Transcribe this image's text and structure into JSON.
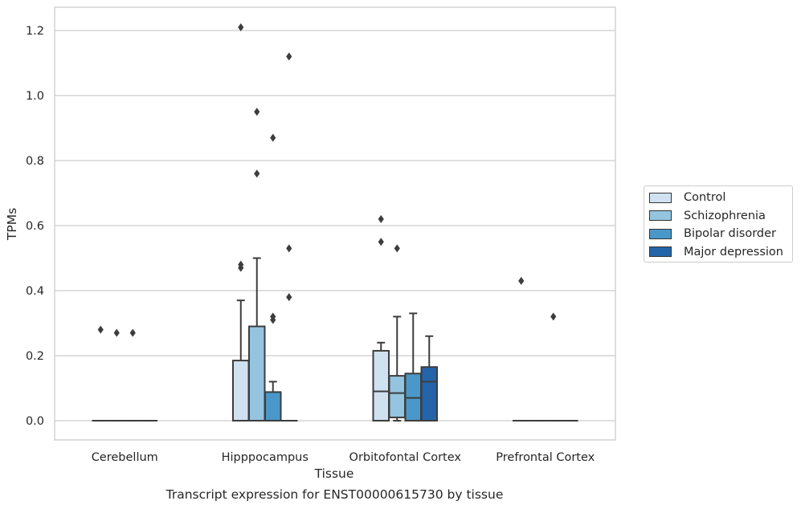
{
  "chart_data": {
    "type": "box",
    "xlabel": "Tissue",
    "ylabel": "TPMs",
    "ylim": [
      -0.06,
      1.27
    ],
    "yticks": [
      0.0,
      0.2,
      0.4,
      0.6,
      0.8,
      1.0,
      1.2
    ],
    "ytick_labels": [
      "0.0",
      "0.2",
      "0.4",
      "0.6",
      "0.8",
      "1.0",
      "1.2"
    ],
    "grid": true,
    "legend_position": "right",
    "categories": [
      "Cerebellum",
      "Hipppocampus",
      "Orbitofontal Cortex",
      "Prefrontal Cortex"
    ],
    "series": [
      {
        "name": "Control",
        "color": "#d0e1f2",
        "boxes": [
          {
            "q1": 0,
            "median": 0,
            "q3": 0,
            "whisker_low": 0,
            "whisker_high": 0,
            "outliers": [
              0.28
            ]
          },
          {
            "q1": 0,
            "median": 0,
            "q3": 0.185,
            "whisker_low": 0,
            "whisker_high": 0.37,
            "outliers": [
              0.48,
              0.47,
              1.21
            ]
          },
          {
            "q1": 0,
            "median": 0.09,
            "q3": 0.215,
            "whisker_low": 0,
            "whisker_high": 0.24,
            "outliers": [
              0.62,
              0.55
            ]
          },
          {
            "q1": 0,
            "median": 0,
            "q3": 0,
            "whisker_low": 0,
            "whisker_high": 0,
            "outliers": [
              0.43
            ]
          }
        ]
      },
      {
        "name": "Schizophrenia",
        "color": "#94c4df",
        "boxes": [
          {
            "q1": 0,
            "median": 0,
            "q3": 0,
            "whisker_low": 0,
            "whisker_high": 0,
            "outliers": [
              0.27
            ]
          },
          {
            "q1": 0,
            "median": 0,
            "q3": 0.29,
            "whisker_low": 0,
            "whisker_high": 0.5,
            "outliers": [
              0.95,
              0.76
            ]
          },
          {
            "q1": 0.01,
            "median": 0.085,
            "q3": 0.138,
            "whisker_low": 0,
            "whisker_high": 0.32,
            "outliers": [
              0.53
            ]
          },
          {
            "q1": 0,
            "median": 0,
            "q3": 0,
            "whisker_low": 0,
            "whisker_high": 0,
            "outliers": []
          }
        ]
      },
      {
        "name": "Bipolar disorder",
        "color": "#4a98c9",
        "boxes": [
          {
            "q1": 0,
            "median": 0,
            "q3": 0,
            "whisker_low": 0,
            "whisker_high": 0,
            "outliers": [
              0.27
            ]
          },
          {
            "q1": 0,
            "median": 0,
            "q3": 0.088,
            "whisker_low": 0,
            "whisker_high": 0.12,
            "outliers": [
              0.87,
              0.32,
              0.31
            ]
          },
          {
            "q1": 0,
            "median": 0.07,
            "q3": 0.145,
            "whisker_low": 0,
            "whisker_high": 0.33,
            "outliers": []
          },
          {
            "q1": 0,
            "median": 0,
            "q3": 0,
            "whisker_low": 0,
            "whisker_high": 0,
            "outliers": [
              0.32
            ]
          }
        ]
      },
      {
        "name": "Major depression",
        "color": "#2464a9",
        "boxes": [
          {
            "q1": 0,
            "median": 0,
            "q3": 0,
            "whisker_low": 0,
            "whisker_high": 0,
            "outliers": []
          },
          {
            "q1": 0,
            "median": 0,
            "q3": 0,
            "whisker_low": 0,
            "whisker_high": 0,
            "outliers": [
              1.12,
              0.53,
              0.38
            ]
          },
          {
            "q1": 0,
            "median": 0.12,
            "q3": 0.165,
            "whisker_low": 0,
            "whisker_high": 0.26,
            "outliers": []
          },
          {
            "q1": 0,
            "median": 0,
            "q3": 0,
            "whisker_low": 0,
            "whisker_high": 0,
            "outliers": []
          }
        ]
      }
    ]
  },
  "caption": "Transcript expression for ENST00000615730 by tissue"
}
